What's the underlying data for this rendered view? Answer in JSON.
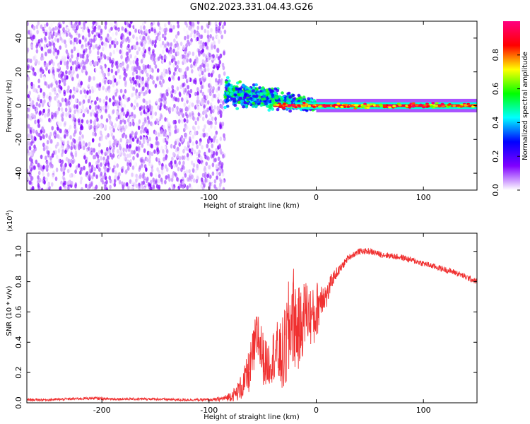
{
  "title": "GN02.2023.331.04.43.G26",
  "chart_data": [
    {
      "type": "heatmap",
      "title": "GN02.2023.331.04.43.G26",
      "xlabel": "Height of straight line (km)",
      "ylabel": "Frequency (Hz)",
      "xlim": [
        -270,
        150
      ],
      "ylim": [
        -50,
        50
      ],
      "x_ticks": [
        -200,
        -100,
        0,
        100
      ],
      "x_tick_labels": [
        "-200",
        "-100",
        "0",
        "100"
      ],
      "y_ticks": [
        -40,
        -20,
        0,
        20,
        40
      ],
      "y_tick_labels": [
        "-40",
        "-20",
        "0",
        "20",
        "40"
      ],
      "colorbar": {
        "label": "Normalized spectral amplitude",
        "range": [
          0,
          1
        ],
        "ticks": [
          0,
          0.2,
          0.4,
          0.6,
          0.8
        ],
        "tick_labels": [
          "0.0",
          "0.2",
          "0.4",
          "0.6",
          "0.8"
        ],
        "colors": [
          "#ffffff",
          "#8000ff",
          "#0000ff",
          "#00ffff",
          "#00ff00",
          "#ffff00",
          "#ff0000",
          "#ff0080"
        ]
      },
      "regions": [
        {
          "x_range": [
            -270,
            -85
          ],
          "freq_range": [
            -50,
            50
          ],
          "amplitude": [
            0.0,
            0.15
          ]
        },
        {
          "x_range": [
            -85,
            0
          ],
          "freq_center": [
            8,
            0
          ],
          "freq_spread": [
            6,
            2
          ],
          "amplitude": [
            0.2,
            0.6
          ]
        },
        {
          "x_range": [
            0,
            150
          ],
          "freq_center": [
            0,
            0
          ],
          "freq_spread": [
            2,
            2
          ],
          "amplitude": [
            0.6,
            1.0
          ]
        }
      ],
      "grid": false
    },
    {
      "type": "line",
      "xlabel": "Height of straight line (km)",
      "ylabel": "SNR (10 * v/v)",
      "y_multiplier_label": "(x10",
      "y_multiplier_exponent": "4",
      "y_multiplier_close": ")",
      "xlim": [
        -270,
        150
      ],
      "ylim": [
        0,
        1.12
      ],
      "x_ticks": [
        -200,
        -100,
        0,
        100
      ],
      "x_tick_labels": [
        "-200",
        "-100",
        "0",
        "100"
      ],
      "y_ticks": [
        0,
        0.2,
        0.4,
        0.6,
        0.8,
        1.0
      ],
      "y_tick_labels": [
        "0.0",
        "0.2",
        "0.4",
        "0.6",
        "0.8",
        "1.0"
      ],
      "color": "#f03030",
      "series": [
        {
          "x": [
            -270,
            -250,
            -230,
            -210,
            -190,
            -170,
            -150,
            -130,
            -110,
            -95,
            -85,
            -75,
            -68,
            -62,
            -58,
            -54,
            -50,
            -46,
            -42,
            -38,
            -34,
            -30,
            -26,
            -22,
            -18,
            -14,
            -10,
            -6,
            -2,
            2,
            6,
            10,
            14,
            18,
            22,
            26,
            30,
            35,
            40,
            45,
            50,
            60,
            70,
            80,
            90,
            100,
            110,
            120,
            130,
            140,
            150
          ],
          "y": [
            0.02,
            0.02,
            0.025,
            0.03,
            0.025,
            0.025,
            0.025,
            0.02,
            0.02,
            0.02,
            0.03,
            0.06,
            0.12,
            0.22,
            0.35,
            0.45,
            0.3,
            0.25,
            0.28,
            0.35,
            0.3,
            0.32,
            0.45,
            0.6,
            0.48,
            0.5,
            0.62,
            0.58,
            0.55,
            0.65,
            0.72,
            0.7,
            0.8,
            0.85,
            0.88,
            0.92,
            0.96,
            0.98,
            1.0,
            1.0,
            1.0,
            0.98,
            0.97,
            0.96,
            0.94,
            0.92,
            0.9,
            0.88,
            0.86,
            0.83,
            0.8
          ],
          "spread": [
            0.008,
            0.008,
            0.008,
            0.01,
            0.008,
            0.008,
            0.008,
            0.008,
            0.008,
            0.01,
            0.02,
            0.05,
            0.1,
            0.15,
            0.18,
            0.2,
            0.18,
            0.15,
            0.15,
            0.2,
            0.22,
            0.28,
            0.35,
            0.35,
            0.3,
            0.25,
            0.22,
            0.2,
            0.2,
            0.18,
            0.12,
            0.08,
            0.05,
            0.04,
            0.03,
            0.025,
            0.02,
            0.02,
            0.02,
            0.02,
            0.02,
            0.02,
            0.02,
            0.02,
            0.02,
            0.02,
            0.02,
            0.02,
            0.02,
            0.02,
            0.02
          ]
        }
      ],
      "grid": false
    }
  ]
}
